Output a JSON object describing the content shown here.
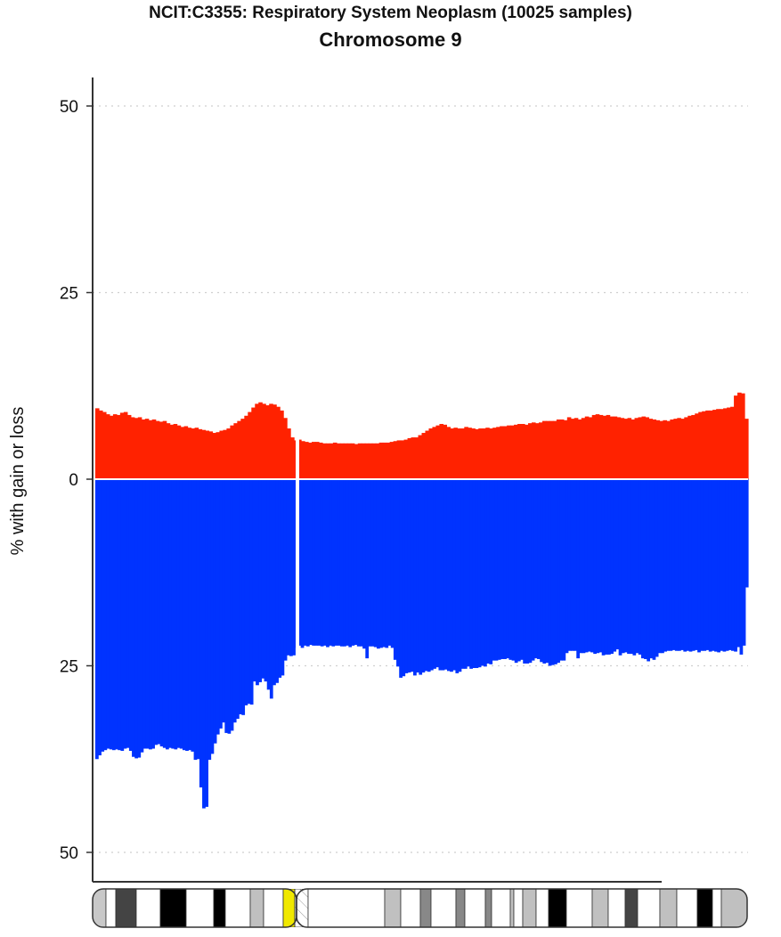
{
  "header": {
    "title": "NCIT:C3355: Respiratory System Neoplasm (10025 samples)",
    "subtitle": "Chromosome 9"
  },
  "chart_data": {
    "type": "bar",
    "title": "NCIT:C3355: Respiratory System Neoplasm (10025 samples)",
    "subtitle": "Chromosome 9",
    "ylabel": "% with gain or loss",
    "ylim": [
      -50,
      50
    ],
    "yticks": [
      50,
      25,
      0,
      25,
      50
    ],
    "ytick_values": [
      50,
      25,
      0,
      -25,
      -50
    ],
    "grid": "horizontal dotted",
    "colors": {
      "gain": "#ff2200",
      "loss": "#0033ff",
      "axis": "#333333"
    },
    "series": [
      {
        "name": "gain",
        "values": [
          9.5,
          9.2,
          9.0,
          8.7,
          8.5,
          8.7,
          8.6,
          8.9,
          9.0,
          8.6,
          8.3,
          8.2,
          8.3,
          8.0,
          8.1,
          7.9,
          8.0,
          7.8,
          7.7,
          7.8,
          7.5,
          7.3,
          7.4,
          7.2,
          7.0,
          7.1,
          6.9,
          6.8,
          6.9,
          6.7,
          6.6,
          6.5,
          6.4,
          6.2,
          6.3,
          6.5,
          6.6,
          6.8,
          7.2,
          7.5,
          7.8,
          8.1,
          8.5,
          9.0,
          9.6,
          10.1,
          10.3,
          10.1,
          9.9,
          10.1,
          10.0,
          9.7,
          9.2,
          8.2,
          6.8,
          5.6,
          5.2,
          5.3,
          5.1,
          5.0,
          4.9,
          5.0,
          5.0,
          4.9,
          4.8,
          4.8,
          4.8,
          4.9,
          4.8,
          4.8,
          4.8,
          4.8,
          4.8,
          4.7,
          4.8,
          4.8,
          4.8,
          4.8,
          4.8,
          4.8,
          4.9,
          4.9,
          4.9,
          5.0,
          5.1,
          5.2,
          5.2,
          5.3,
          5.5,
          5.6,
          5.6,
          5.9,
          6.2,
          6.5,
          6.8,
          7.0,
          7.2,
          7.4,
          7.3,
          7.0,
          6.8,
          6.9,
          6.8,
          6.8,
          7.0,
          6.9,
          6.8,
          6.7,
          6.8,
          6.8,
          6.9,
          6.8,
          6.9,
          7.0,
          7.1,
          7.1,
          7.2,
          7.2,
          7.3,
          7.4,
          7.4,
          7.3,
          7.5,
          7.6,
          7.5,
          7.6,
          7.8,
          7.8,
          7.8,
          7.8,
          8.0,
          8.0,
          7.9,
          8.3,
          8.1,
          8.2,
          8.0,
          8.2,
          8.4,
          8.3,
          8.6,
          8.7,
          8.6,
          8.5,
          8.6,
          8.4,
          8.4,
          8.3,
          8.2,
          8.1,
          8.2,
          8.0,
          8.2,
          8.3,
          8.4,
          8.3,
          8.1,
          8.0,
          7.9,
          7.8,
          7.9,
          7.8,
          8.0,
          8.1,
          8.2,
          8.1,
          8.3,
          8.5,
          8.6,
          8.8,
          9.0,
          9.1,
          9.2,
          9.2,
          9.3,
          9.4,
          9.4,
          9.5,
          9.6,
          9.7,
          11.2,
          11.6,
          11.5,
          8.1
        ]
      },
      {
        "name": "loss",
        "values": [
          -37.5,
          -37.0,
          -36.5,
          -36.3,
          -36.1,
          -36.2,
          -36.3,
          -36.2,
          -36.3,
          -36.4,
          -36.1,
          -36.0,
          -36.4,
          -37.2,
          -37.4,
          -37.3,
          -36.6,
          -36.1,
          -36.1,
          -36.2,
          -36.1,
          -35.6,
          -35.5,
          -35.8,
          -36.0,
          -36.2,
          -36.0,
          -36.1,
          -36.2,
          -36.0,
          -36.1,
          -36.3,
          -36.4,
          -36.3,
          -36.5,
          -37.6,
          -37.5,
          -41.3,
          -44.1,
          -43.9,
          -37.6,
          -36.8,
          -35.4,
          -34.2,
          -33.4,
          -32.6,
          -34.0,
          -34.1,
          -33.7,
          -32.6,
          -32.1,
          -31.5,
          -31.6,
          -30.3,
          -30.1,
          -30.2,
          -27.1,
          -27.6,
          -27.2,
          -26.7,
          -27.1,
          -28.2,
          -29.4,
          -27.6,
          -27.3,
          -26.6,
          -26.3,
          -24.3,
          -23.6,
          -23.7,
          -23.6,
          -22.6,
          -22.3,
          -22.6,
          -22.3,
          -22.4,
          -22.2,
          -22.3,
          -22.3,
          -22.3,
          -22.4,
          -22.3,
          -22.5,
          -22.3,
          -22.4,
          -22.3,
          -22.3,
          -22.4,
          -22.4,
          -22.3,
          -22.5,
          -22.3,
          -22.2,
          -22.4,
          -22.4,
          -22.7,
          -24.0,
          -22.4,
          -22.4,
          -22.5,
          -22.7,
          -22.6,
          -22.5,
          -22.6,
          -22.3,
          -22.6,
          -24.2,
          -25.1,
          -26.6,
          -26.4,
          -26.0,
          -25.9,
          -25.8,
          -26.3,
          -25.9,
          -26.2,
          -25.9,
          -25.7,
          -25.8,
          -25.6,
          -25.4,
          -25.2,
          -25.6,
          -25.6,
          -25.5,
          -25.7,
          -25.8,
          -25.6,
          -26.0,
          -25.8,
          -25.4,
          -25.4,
          -25.1,
          -25.4,
          -25.3,
          -25.3,
          -25.2,
          -25.0,
          -25.1,
          -24.7,
          -24.8,
          -24.3,
          -24.3,
          -24.2,
          -24.1,
          -24.1,
          -24.0,
          -24.2,
          -24.3,
          -24.6,
          -24.4,
          -24.2,
          -24.7,
          -24.7,
          -24.6,
          -24.3,
          -24.0,
          -24.1,
          -24.5,
          -24.7,
          -24.6,
          -25.0,
          -24.9,
          -24.8,
          -24.6,
          -24.3,
          -24.3,
          -23.3,
          -23.0,
          -23.0,
          -23.0,
          -24.0,
          -23.3,
          -23.3,
          -23.2,
          -23.1,
          -23.2,
          -23.4,
          -23.3,
          -23.2,
          -23.6,
          -23.5,
          -23.5,
          -23.4,
          -23.1,
          -22.8,
          -23.6,
          -23.3,
          -23.2,
          -23.4,
          -23.4,
          -23.6,
          -23.3,
          -23.5,
          -24.0,
          -24.1,
          -24.4,
          -24.0,
          -24.2,
          -23.8,
          -23.3,
          -23.3,
          -23.1,
          -23.0,
          -23.0,
          -22.9,
          -23.0,
          -23.0,
          -22.9,
          -23.1,
          -23.0,
          -23.1,
          -23.0,
          -22.9,
          -23.2,
          -23.0,
          -23.0,
          -22.9,
          -23.1,
          -23.0,
          -23.1,
          -23.2,
          -23.0,
          -23.1,
          -23.0,
          -22.9,
          -23.0,
          -23.1,
          -22.5,
          -23.5,
          -22.3,
          -14.5
        ]
      }
    ],
    "ideogram": {
      "bands": [
        {
          "stain": "gvar-light"
        },
        {
          "stain": "gneg"
        },
        {
          "stain": "gpos75"
        },
        {
          "stain": "gneg"
        },
        {
          "stain": "gpos100"
        },
        {
          "stain": "gneg"
        },
        {
          "stain": "gpos100"
        },
        {
          "stain": "gneg"
        },
        {
          "stain": "gpos25"
        },
        {
          "stain": "gneg"
        },
        {
          "stain": "acen"
        },
        {
          "stain": "gvar"
        },
        {
          "stain": "gneg"
        },
        {
          "stain": "gpos25"
        },
        {
          "stain": "gneg"
        },
        {
          "stain": "gpos50"
        },
        {
          "stain": "gneg"
        },
        {
          "stain": "gpos50"
        },
        {
          "stain": "gneg"
        },
        {
          "stain": "gpos50"
        },
        {
          "stain": "gneg"
        },
        {
          "stain": "gpos25"
        },
        {
          "stain": "gneg"
        },
        {
          "stain": "gpos25"
        },
        {
          "stain": "gneg"
        },
        {
          "stain": "gpos100"
        },
        {
          "stain": "gneg"
        },
        {
          "stain": "gpos25"
        },
        {
          "stain": "gneg"
        },
        {
          "stain": "gpos75"
        },
        {
          "stain": "gneg"
        },
        {
          "stain": "gpos25"
        },
        {
          "stain": "gneg"
        },
        {
          "stain": "gpos100"
        },
        {
          "stain": "gneg"
        },
        {
          "stain": "gpos25"
        }
      ],
      "stain_colors": {
        "gneg": "#ffffff",
        "gpos25": "#c0c0c0",
        "gpos50": "#888888",
        "gpos75": "#444444",
        "gpos100": "#000000",
        "acen": "#f0e800",
        "gvar": "hatched",
        "gvar-light": "#c8c8c8"
      }
    }
  }
}
